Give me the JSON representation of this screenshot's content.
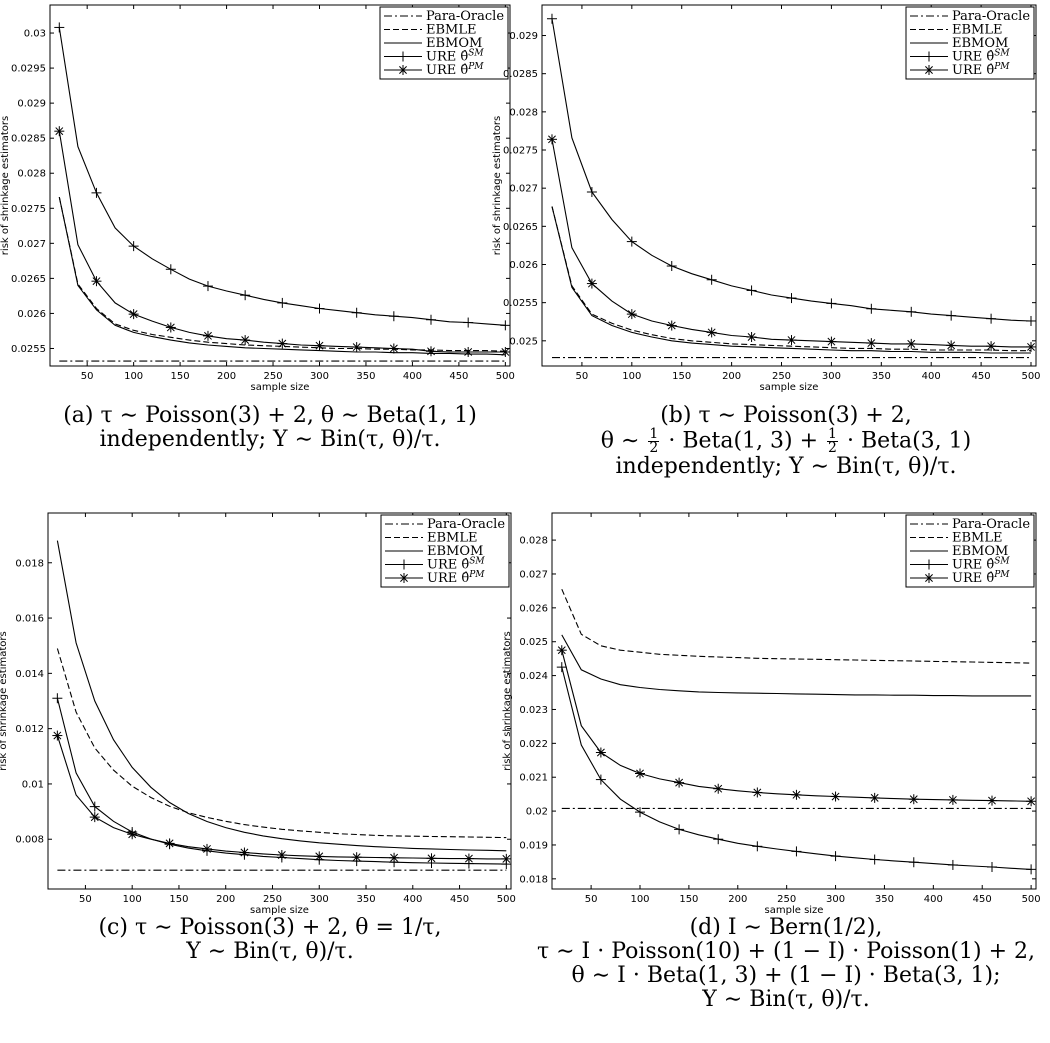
{
  "legend_labels": [
    "Para-Oracle",
    "EBMLE",
    "EBMOM",
    "URE θ̂",
    "URE θ̂"
  ],
  "legend_sups": [
    "",
    "",
    "",
    "SM",
    "PM"
  ],
  "charts": [
    {
      "id": "a",
      "ylabel": "risk of shrinkage estimators",
      "xlabel": "sample size",
      "xlim": [
        10,
        505
      ],
      "ylim": [
        0.02525,
        0.0304
      ],
      "xticks": [
        50,
        100,
        150,
        200,
        250,
        300,
        350,
        400,
        450,
        500
      ],
      "yticks": [
        0.0255,
        0.026,
        0.0265,
        0.027,
        0.0275,
        0.028,
        0.0285,
        0.029,
        0.0295,
        0.03
      ],
      "ytick_labels": [
        "0.0255",
        "0.026",
        "0.0265",
        "0.027",
        "0.0275",
        "0.028",
        "0.0285",
        "0.029",
        "0.0295",
        "0.03"
      ],
      "caption": [
        "(a) τ ∼ Poisson(3) + 2, θ ∼ Beta(1, 1)",
        "independently; Y ∼ Bin(τ, θ)/τ."
      ]
    },
    {
      "id": "b",
      "ylabel": "risk of shrinkage estimators",
      "xlabel": "sample size",
      "xlim": [
        10,
        505
      ],
      "ylim": [
        0.02467,
        0.0294
      ],
      "xticks": [
        50,
        100,
        150,
        200,
        250,
        300,
        350,
        400,
        450,
        500
      ],
      "yticks": [
        0.025,
        0.0255,
        0.026,
        0.0265,
        0.027,
        0.0275,
        0.028,
        0.0285,
        0.029
      ],
      "ytick_labels": [
        "0.025",
        "0.0255",
        "0.026",
        "0.0265",
        "0.027",
        "0.0275",
        "0.028",
        "0.0285",
        "0.029"
      ],
      "caption": [
        "(b) τ ∼ Poisson(3) + 2,",
        "",
        "independently; Y ∼ Bin(τ, θ)/τ."
      ],
      "caption_mid": {
        "pre": "θ ∼",
        "num": "1",
        "den": "2",
        "mid": "· Beta(1, 3) +",
        "num2": "1",
        "den2": "2",
        "post": "· Beta(3, 1)"
      }
    },
    {
      "id": "c",
      "ylabel": "risk of shrinkage estimators",
      "xlabel": "sample size",
      "xlim": [
        10,
        505
      ],
      "ylim": [
        0.0062,
        0.0198
      ],
      "xticks": [
        50,
        100,
        150,
        200,
        250,
        300,
        350,
        400,
        450,
        500
      ],
      "yticks": [
        0.008,
        0.01,
        0.012,
        0.014,
        0.016,
        0.018
      ],
      "ytick_labels": [
        "0.008",
        "0.01",
        "0.012",
        "0.014",
        "0.016",
        "0.018"
      ],
      "caption": [
        "(c) τ ∼ Poisson(3) + 2, θ = 1/τ,",
        "Y ∼ Bin(τ, θ)/τ."
      ]
    },
    {
      "id": "d",
      "ylabel": "risk of shrinkage estimators",
      "xlabel": "sample size",
      "xlim": [
        10,
        505
      ],
      "ylim": [
        0.0177,
        0.0288
      ],
      "xticks": [
        50,
        100,
        150,
        200,
        250,
        300,
        350,
        400,
        450,
        500
      ],
      "yticks": [
        0.018,
        0.019,
        0.02,
        0.021,
        0.022,
        0.023,
        0.024,
        0.025,
        0.026,
        0.027,
        0.028
      ],
      "ytick_labels": [
        "0.018",
        "0.019",
        "0.02",
        "0.021",
        "0.022",
        "0.023",
        "0.024",
        "0.025",
        "0.026",
        "0.027",
        "0.028"
      ],
      "caption": [
        "(d) I ∼ Bern(1/2),",
        "τ ∼ I · Poisson(10) + (1 − I) · Poisson(1) + 2,",
        "θ ∼ I · Beta(1, 3) + (1 − I) · Beta(3, 1);",
        "Y ∼ Bin(τ, θ)/τ."
      ]
    }
  ],
  "chart_data": [
    {
      "type": "line",
      "title": "",
      "xlabel": "sample size",
      "ylabel": "risk of shrinkage estimators",
      "xlim": [
        10,
        505
      ],
      "ylim": [
        0.02525,
        0.0304
      ],
      "legend": "top-right",
      "grid": false,
      "x": [
        20,
        40,
        60,
        80,
        100,
        120,
        140,
        160,
        180,
        200,
        220,
        240,
        260,
        280,
        300,
        320,
        340,
        360,
        380,
        400,
        420,
        440,
        460,
        480,
        500
      ],
      "series": [
        {
          "name": "Para-Oracle",
          "style": "dashdot",
          "values": [
            0.02532,
            0.02532,
            0.02532,
            0.02532,
            0.02532,
            0.02532,
            0.02532,
            0.02532,
            0.02532,
            0.02532,
            0.02532,
            0.02532,
            0.02532,
            0.02532,
            0.02532,
            0.02532,
            0.02532,
            0.02532,
            0.02532,
            0.02532,
            0.02532,
            0.02532,
            0.02532,
            0.02532,
            0.02532
          ]
        },
        {
          "name": "EBMLE",
          "style": "dashed",
          "values": [
            0.02766,
            0.02642,
            0.02607,
            0.02585,
            0.02576,
            0.0257,
            0.02566,
            0.02562,
            0.02559,
            0.02557,
            0.02555,
            0.02554,
            0.02553,
            0.02552,
            0.02551,
            0.0255,
            0.0255,
            0.02549,
            0.02549,
            0.02548,
            0.02548,
            0.02547,
            0.02547,
            0.02547,
            0.02546
          ]
        },
        {
          "name": "EBMOM",
          "style": "solid",
          "values": [
            0.02766,
            0.0264,
            0.02605,
            0.02583,
            0.02573,
            0.02567,
            0.02562,
            0.02558,
            0.02555,
            0.02553,
            0.02551,
            0.0255,
            0.02549,
            0.02548,
            0.02547,
            0.02546,
            0.02545,
            0.02545,
            0.02544,
            0.02544,
            0.02543,
            0.02543,
            0.02542,
            0.02542,
            0.02541
          ]
        },
        {
          "name": "URE θ̂SM",
          "style": "solid",
          "marker": "plus",
          "values": [
            0.03008,
            0.02838,
            0.02772,
            0.02722,
            0.02696,
            0.02678,
            0.02663,
            0.02649,
            0.02639,
            0.02632,
            0.02626,
            0.0262,
            0.02615,
            0.02611,
            0.02607,
            0.02604,
            0.02601,
            0.02598,
            0.02596,
            0.02594,
            0.02591,
            0.02588,
            0.02587,
            0.02585,
            0.02583
          ]
        },
        {
          "name": "URE θ̂PM",
          "style": "solid",
          "marker": "star",
          "values": [
            0.0286,
            0.02698,
            0.02646,
            0.02615,
            0.02599,
            0.02589,
            0.0258,
            0.02573,
            0.02568,
            0.02564,
            0.02562,
            0.02559,
            0.02557,
            0.02555,
            0.02554,
            0.02553,
            0.02552,
            0.02551,
            0.0255,
            0.02549,
            0.02546,
            0.02545,
            0.02545,
            0.02545,
            0.02545
          ]
        }
      ]
    },
    {
      "type": "line",
      "title": "",
      "xlabel": "sample size",
      "ylabel": "risk of shrinkage estimators",
      "xlim": [
        10,
        505
      ],
      "ylim": [
        0.02467,
        0.0294
      ],
      "legend": "top-right",
      "grid": false,
      "x": [
        20,
        40,
        60,
        80,
        100,
        120,
        140,
        160,
        180,
        200,
        220,
        240,
        260,
        280,
        300,
        320,
        340,
        360,
        380,
        400,
        420,
        440,
        460,
        480,
        500
      ],
      "series": [
        {
          "name": "Para-Oracle",
          "style": "dashdot",
          "values": [
            0.02478,
            0.02478,
            0.02478,
            0.02478,
            0.02478,
            0.02478,
            0.02478,
            0.02478,
            0.02478,
            0.02478,
            0.02478,
            0.02478,
            0.02478,
            0.02478,
            0.02478,
            0.02478,
            0.02478,
            0.02478,
            0.02478,
            0.02478,
            0.02478,
            0.02478,
            0.02478,
            0.02478,
            0.02478
          ]
        },
        {
          "name": "EBMLE",
          "style": "dashed",
          "values": [
            0.02676,
            0.02572,
            0.02535,
            0.02523,
            0.02514,
            0.02508,
            0.02503,
            0.025,
            0.02498,
            0.02496,
            0.02495,
            0.02494,
            0.02493,
            0.02492,
            0.02491,
            0.0249,
            0.0249,
            0.02489,
            0.02489,
            0.02488,
            0.02488,
            0.02488,
            0.02488,
            0.02487,
            0.02487
          ]
        },
        {
          "name": "EBMOM",
          "style": "solid",
          "values": [
            0.02676,
            0.0257,
            0.02533,
            0.0252,
            0.02511,
            0.02505,
            0.025,
            0.02497,
            0.02495,
            0.02493,
            0.02492,
            0.02491,
            0.0249,
            0.02489,
            0.02488,
            0.02487,
            0.02487,
            0.02486,
            0.02486,
            0.02485,
            0.02485,
            0.02485,
            0.02484,
            0.02484,
            0.02484
          ]
        },
        {
          "name": "URE θ̂SM",
          "style": "solid",
          "marker": "plus",
          "values": [
            0.02922,
            0.02766,
            0.02695,
            0.02659,
            0.0263,
            0.02612,
            0.02598,
            0.02588,
            0.0258,
            0.02572,
            0.02566,
            0.0256,
            0.02556,
            0.02552,
            0.02549,
            0.02546,
            0.02542,
            0.0254,
            0.02538,
            0.02535,
            0.02533,
            0.02531,
            0.02529,
            0.02527,
            0.02526
          ]
        },
        {
          "name": "URE θ̂PM",
          "style": "solid",
          "marker": "star",
          "values": [
            0.02764,
            0.02622,
            0.02575,
            0.02552,
            0.02535,
            0.02526,
            0.0252,
            0.02515,
            0.02511,
            0.02507,
            0.02505,
            0.02502,
            0.02501,
            0.025,
            0.02499,
            0.02498,
            0.02497,
            0.02496,
            0.02496,
            0.02495,
            0.02494,
            0.02493,
            0.02493,
            0.02492,
            0.02492
          ]
        }
      ]
    },
    {
      "type": "line",
      "title": "",
      "xlabel": "sample size",
      "ylabel": "risk of shrinkage estimators",
      "xlim": [
        10,
        505
      ],
      "ylim": [
        0.0062,
        0.0198
      ],
      "legend": "top-right",
      "grid": false,
      "x": [
        20,
        40,
        60,
        80,
        100,
        120,
        140,
        160,
        180,
        200,
        220,
        240,
        260,
        280,
        300,
        320,
        340,
        360,
        380,
        400,
        420,
        440,
        460,
        480,
        500
      ],
      "series": [
        {
          "name": "Para-Oracle",
          "style": "dashdot",
          "values": [
            0.00688,
            0.00688,
            0.00688,
            0.00688,
            0.00688,
            0.00688,
            0.00688,
            0.00688,
            0.00688,
            0.00688,
            0.00688,
            0.00688,
            0.00688,
            0.00688,
            0.00688,
            0.00688,
            0.00688,
            0.00688,
            0.00688,
            0.00688,
            0.00688,
            0.00688,
            0.00688,
            0.00688,
            0.00688
          ]
        },
        {
          "name": "EBMLE",
          "style": "dashed",
          "values": [
            0.0149,
            0.0126,
            0.0113,
            0.0105,
            0.00992,
            0.00951,
            0.00919,
            0.00896,
            0.00879,
            0.00865,
            0.00853,
            0.00844,
            0.00836,
            0.0083,
            0.00825,
            0.0082,
            0.00817,
            0.00814,
            0.00812,
            0.00811,
            0.0081,
            0.00809,
            0.00808,
            0.00807,
            0.00806
          ]
        },
        {
          "name": "EBMOM",
          "style": "solid",
          "values": [
            0.0188,
            0.0151,
            0.013,
            0.0116,
            0.0106,
            0.00988,
            0.00933,
            0.00893,
            0.00864,
            0.00842,
            0.00825,
            0.00812,
            0.00802,
            0.00794,
            0.00787,
            0.00782,
            0.00777,
            0.00773,
            0.0077,
            0.00767,
            0.00765,
            0.00763,
            0.00761,
            0.0076,
            0.00758
          ]
        },
        {
          "name": "URE θ̂SM",
          "style": "solid",
          "marker": "plus",
          "values": [
            0.0131,
            0.0104,
            0.00918,
            0.00865,
            0.00826,
            0.00801,
            0.00782,
            0.00768,
            0.00758,
            0.0075,
            0.00744,
            0.00738,
            0.00734,
            0.0073,
            0.00726,
            0.00723,
            0.00721,
            0.00719,
            0.00717,
            0.00715,
            0.00714,
            0.00713,
            0.00712,
            0.00711,
            0.0071
          ]
        },
        {
          "name": "URE θ̂PM",
          "style": "solid",
          "marker": "star",
          "values": [
            0.01175,
            0.0096,
            0.0088,
            0.00842,
            0.00818,
            0.008,
            0.00785,
            0.00773,
            0.00765,
            0.00757,
            0.00752,
            0.00747,
            0.00743,
            0.0074,
            0.00738,
            0.00736,
            0.00735,
            0.00734,
            0.00733,
            0.00732,
            0.00731,
            0.0073,
            0.0073,
            0.00729,
            0.00729
          ]
        }
      ]
    },
    {
      "type": "line",
      "title": "",
      "xlabel": "sample size",
      "ylabel": "risk of shrinkage estimators",
      "xlim": [
        10,
        505
      ],
      "ylim": [
        0.0177,
        0.0288
      ],
      "legend": "top-right",
      "grid": false,
      "x": [
        20,
        40,
        60,
        80,
        100,
        120,
        140,
        160,
        180,
        200,
        220,
        240,
        260,
        280,
        300,
        320,
        340,
        360,
        380,
        400,
        420,
        440,
        460,
        480,
        500
      ],
      "series": [
        {
          "name": "Para-Oracle",
          "style": "dashdot",
          "values": [
            0.02008,
            0.02008,
            0.02008,
            0.02008,
            0.02008,
            0.02008,
            0.02008,
            0.02008,
            0.02008,
            0.02008,
            0.02008,
            0.02008,
            0.02008,
            0.02008,
            0.02008,
            0.02008,
            0.02008,
            0.02008,
            0.02008,
            0.02008,
            0.02008,
            0.02008,
            0.02008,
            0.02008,
            0.02008
          ]
        },
        {
          "name": "EBMLE",
          "style": "dashed",
          "values": [
            0.02655,
            0.02522,
            0.02488,
            0.02475,
            0.02469,
            0.02463,
            0.0246,
            0.02457,
            0.02455,
            0.02453,
            0.02451,
            0.0245,
            0.02449,
            0.02448,
            0.02447,
            0.02446,
            0.02445,
            0.02444,
            0.02443,
            0.02442,
            0.02441,
            0.0244,
            0.02439,
            0.02438,
            0.02437
          ]
        },
        {
          "name": "EBMOM",
          "style": "solid",
          "values": [
            0.0252,
            0.02417,
            0.0239,
            0.02373,
            0.02365,
            0.02359,
            0.02355,
            0.02352,
            0.0235,
            0.02349,
            0.02348,
            0.02347,
            0.02346,
            0.02345,
            0.02344,
            0.02343,
            0.02343,
            0.02342,
            0.02342,
            0.02341,
            0.02341,
            0.0234,
            0.0234,
            0.0234,
            0.0234
          ]
        },
        {
          "name": "URE θ̂SM",
          "style": "solid",
          "marker": "plus",
          "values": [
            0.02425,
            0.02195,
            0.02093,
            0.02035,
            0.01997,
            0.01968,
            0.01946,
            0.0193,
            0.01917,
            0.01905,
            0.01896,
            0.01888,
            0.01881,
            0.01874,
            0.01867,
            0.01862,
            0.01857,
            0.01853,
            0.01849,
            0.01845,
            0.01841,
            0.01838,
            0.01835,
            0.01831,
            0.01828
          ]
        },
        {
          "name": "URE θ̂PM",
          "style": "solid",
          "marker": "star",
          "values": [
            0.02475,
            0.02252,
            0.02173,
            0.02135,
            0.02111,
            0.02095,
            0.02084,
            0.02073,
            0.02066,
            0.0206,
            0.02055,
            0.02051,
            0.02048,
            0.02045,
            0.02043,
            0.02041,
            0.02039,
            0.02037,
            0.02035,
            0.02034,
            0.02033,
            0.02032,
            0.02031,
            0.0203,
            0.02029
          ]
        }
      ]
    }
  ]
}
